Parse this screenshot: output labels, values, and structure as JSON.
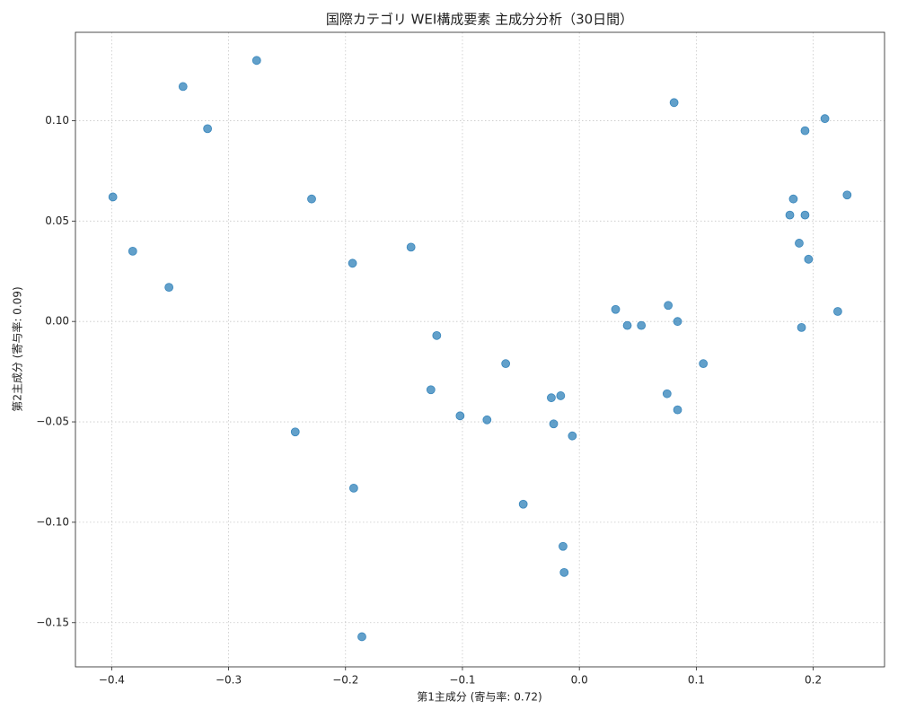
{
  "chart_data": {
    "type": "scatter",
    "title": "国際カテゴリ WEI構成要素 主成分分析（30日間）",
    "x_label": "第1主成分 (寄与率: 0.72)",
    "y_label": "第2主成分 (寄与率: 0.09)",
    "color": "#1f77b4",
    "grid": true,
    "xlim": [
      -0.431,
      0.261
    ],
    "ylim": [
      -0.172,
      0.144
    ],
    "xticks": [
      {
        "value": -0.4,
        "label": "−0.4"
      },
      {
        "value": -0.3,
        "label": "−0.3"
      },
      {
        "value": -0.2,
        "label": "−0.2"
      },
      {
        "value": -0.1,
        "label": "−0.1"
      },
      {
        "value": 0,
        "label": "0.0"
      },
      {
        "value": 0.1,
        "label": "0.1"
      },
      {
        "value": 0.2,
        "label": "0.2"
      }
    ],
    "yticks": [
      {
        "value": -0.15,
        "label": "−0.15"
      },
      {
        "value": -0.1,
        "label": "−0.10"
      },
      {
        "value": -0.05,
        "label": "−0.05"
      },
      {
        "value": 0,
        "label": "0.00"
      },
      {
        "value": 0.05,
        "label": "0.05"
      },
      {
        "value": 0.1,
        "label": "0.10"
      }
    ],
    "x": [
      -0.399,
      -0.382,
      -0.351,
      -0.339,
      -0.318,
      -0.276,
      -0.229,
      -0.243,
      -0.194,
      -0.193,
      -0.186,
      -0.144,
      -0.122,
      -0.127,
      -0.102,
      -0.079,
      -0.063,
      -0.048,
      -0.024,
      -0.022,
      -0.016,
      -0.014,
      -0.013,
      -0.006,
      0.031,
      0.041,
      0.053,
      0.076,
      0.075,
      0.081,
      0.084,
      0.084,
      0.106,
      0.18,
      0.183,
      0.188,
      0.19,
      0.193,
      0.193,
      0.196,
      0.21,
      0.221,
      0.229
    ],
    "values": [
      0.062,
      0.035,
      0.017,
      0.117,
      0.096,
      0.13,
      0.061,
      -0.055,
      0.029,
      -0.083,
      -0.157,
      0.037,
      -0.007,
      -0.034,
      -0.047,
      -0.049,
      -0.021,
      -0.091,
      -0.038,
      -0.051,
      -0.037,
      -0.112,
      -0.125,
      -0.057,
      0.006,
      -0.002,
      -0.002,
      0.008,
      -0.036,
      0.109,
      0.0,
      -0.044,
      -0.021,
      0.053,
      0.061,
      0.039,
      -0.003,
      0.053,
      0.095,
      0.031,
      0.101,
      0.005,
      0.063
    ]
  }
}
